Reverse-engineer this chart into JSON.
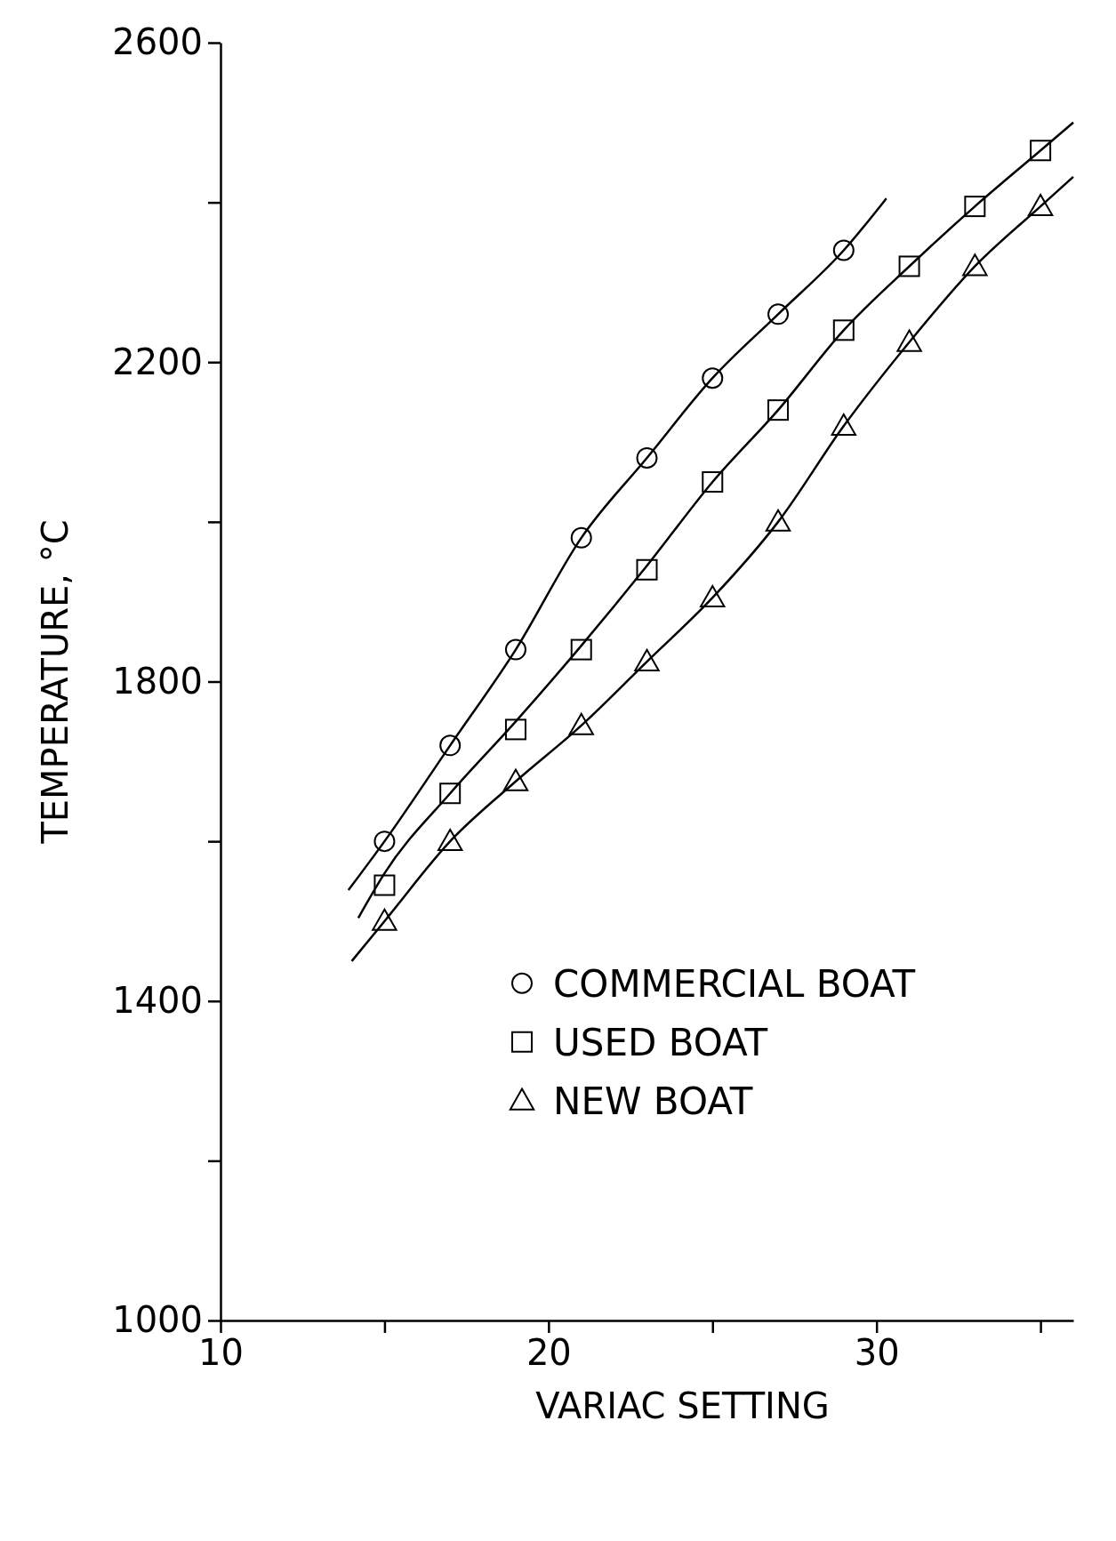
{
  "chart_data": {
    "type": "scatter",
    "xlabel": "VARIAC SETTING",
    "ylabel": "TEMPERATURE, °C",
    "xlim": [
      10,
      36
    ],
    "ylim": [
      1000,
      2600
    ],
    "xticks": [
      10,
      {
        "value": 15,
        "label": null
      },
      20,
      {
        "value": 25,
        "label": null
      },
      30,
      {
        "value": 35,
        "label": null
      }
    ],
    "yticks": [
      1000,
      {
        "value": 1200,
        "label": null
      },
      1400,
      {
        "value": 1600,
        "label": null
      },
      1800,
      {
        "value": 2000,
        "label": null
      },
      2200,
      {
        "value": 2400,
        "label": null
      },
      2600
    ],
    "legend": "right",
    "grid": false,
    "series": [
      {
        "type": "line",
        "marker": "none",
        "color": "#000000",
        "x": [
          13.9,
          15,
          17,
          19,
          21,
          23,
          25,
          27,
          29,
          30.3
        ],
        "values": [
          1539,
          1600,
          1720,
          1840,
          1980,
          2080,
          2180,
          2260,
          2340,
          2405
        ]
      },
      {
        "type": "line",
        "marker": "none",
        "color": "#000000",
        "x": [
          14.2,
          15,
          17,
          19,
          21,
          23,
          25,
          27,
          29,
          31,
          33,
          35,
          36
        ],
        "values": [
          1504,
          1560,
          1660,
          1750,
          1845,
          1945,
          2050,
          2140,
          2240,
          2320,
          2395,
          2465,
          2500
        ]
      },
      {
        "type": "line",
        "marker": "none",
        "color": "#000000",
        "x": [
          14,
          15,
          17,
          19,
          21,
          23,
          25,
          27,
          29,
          31,
          33,
          35,
          36
        ],
        "values": [
          1450,
          1500,
          1600,
          1675,
          1745,
          1825,
          1905,
          2000,
          2120,
          2225,
          2320,
          2395,
          2432
        ]
      },
      {
        "name": "COMMERCIAL BOAT",
        "marker": "circle",
        "color": "#000000",
        "x": [
          15,
          17,
          19,
          21,
          23,
          25,
          27,
          29
        ],
        "values": [
          1600,
          1720,
          1840,
          1980,
          2080,
          2180,
          2260,
          2340
        ]
      },
      {
        "name": "USED BOAT",
        "marker": "square",
        "color": "#000000",
        "x": [
          15,
          17,
          19,
          21,
          23,
          25,
          27,
          29,
          31,
          33,
          35
        ],
        "values": [
          1545,
          1660,
          1740,
          1840,
          1940,
          2050,
          2140,
          2240,
          2320,
          2395,
          2465
        ]
      },
      {
        "name": "NEW BOAT",
        "marker": "triangle",
        "color": "#000000",
        "x": [
          15,
          17,
          19,
          21,
          23,
          25,
          27,
          29,
          31,
          33,
          35
        ],
        "values": [
          1500,
          1600,
          1675,
          1745,
          1825,
          1905,
          2000,
          2120,
          2225,
          2320,
          2395
        ]
      }
    ]
  }
}
